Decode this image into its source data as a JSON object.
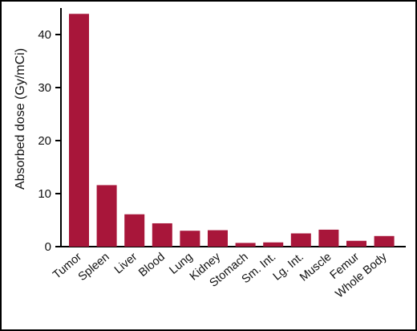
{
  "chart_data": {
    "type": "bar",
    "title": "",
    "xlabel": "",
    "ylabel": "Absorbed dose (Gy/mCi)",
    "categories": [
      "Tumor",
      "Spleen",
      "Liver",
      "Blood",
      "Lung",
      "Kidney",
      "Stomach",
      "Sm. Int.",
      "Lg. Int.",
      "Muscle",
      "Femur",
      "Whole Body"
    ],
    "values": [
      43.9,
      11.6,
      6.1,
      4.4,
      3.0,
      3.1,
      0.7,
      0.8,
      2.5,
      3.2,
      1.1,
      2.0
    ],
    "ylim": [
      0,
      45
    ],
    "yticks": [
      0,
      10,
      20,
      30,
      40
    ],
    "bar_color": "#a8163a",
    "grid": false,
    "legend": "none"
  }
}
